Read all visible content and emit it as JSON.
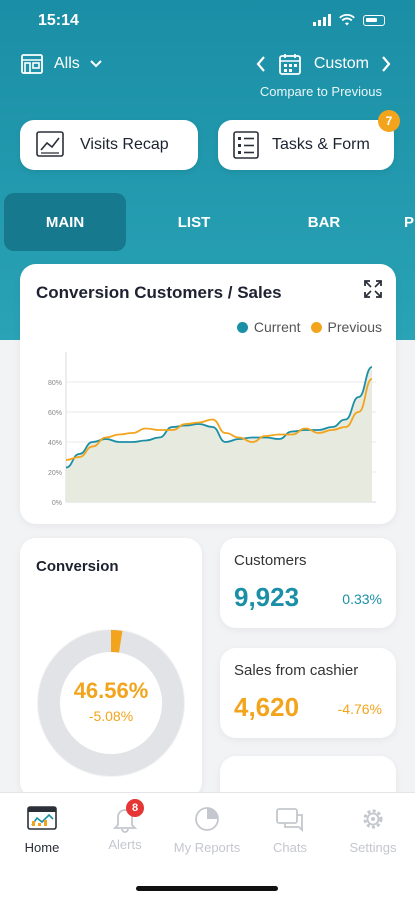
{
  "status": {
    "time": "15:14"
  },
  "header": {
    "store_label": "Alls",
    "date_mode": "Custom",
    "compare_label": "Compare to Previous"
  },
  "quick_actions": {
    "visits_label": "Visits Recap",
    "tasks_label": "Tasks & Form",
    "tasks_badge": "7"
  },
  "tabs": [
    {
      "label": "MAIN"
    },
    {
      "label": "LIST"
    },
    {
      "label": "BAR"
    },
    {
      "label": "P"
    }
  ],
  "chart_card": {
    "title": "Conversion Customers / Sales",
    "legend_current": "Current",
    "legend_previous": "Previous"
  },
  "chart_data": {
    "type": "line",
    "title": "Conversion Customers / Sales",
    "y_ticks": [
      "0%",
      "20%",
      "40%",
      "60%",
      "80%"
    ],
    "ylim": [
      0,
      100
    ],
    "grid": true,
    "legend": "top-right",
    "series": [
      {
        "name": "Current",
        "color": "#1b8fa6",
        "values": [
          23,
          32,
          40,
          42,
          40,
          40,
          41,
          43,
          50,
          51,
          52,
          50,
          40,
          42,
          43,
          43,
          42,
          47,
          48,
          48,
          50,
          55,
          70,
          90
        ]
      },
      {
        "name": "Previous",
        "color": "#f3a41d",
        "values": [
          28,
          30,
          37,
          43,
          45,
          46,
          49,
          48,
          48,
          52,
          53,
          55,
          46,
          43,
          40,
          44,
          45,
          45,
          49,
          46,
          48,
          50,
          60,
          82
        ]
      }
    ]
  },
  "conversion": {
    "title": "Conversion",
    "value": "46.56%",
    "delta": "-5.08%",
    "fill_fraction": 0.025
  },
  "customers": {
    "label": "Customers",
    "value": "9,923",
    "delta": "0.33%",
    "color": "#1b8fa6"
  },
  "sales": {
    "label": "Sales from cashier",
    "value": "4,620",
    "delta": "-4.76%",
    "color": "#f3a41d"
  },
  "nav": {
    "items": [
      {
        "label": "Home",
        "icon": "home-dashboard-icon"
      },
      {
        "label": "Alerts",
        "icon": "bell-icon",
        "badge": "8"
      },
      {
        "label": "My Reports",
        "icon": "pie-chart-icon"
      },
      {
        "label": "Chats",
        "icon": "chat-icon"
      },
      {
        "label": "Settings",
        "icon": "gear-icon"
      }
    ]
  }
}
